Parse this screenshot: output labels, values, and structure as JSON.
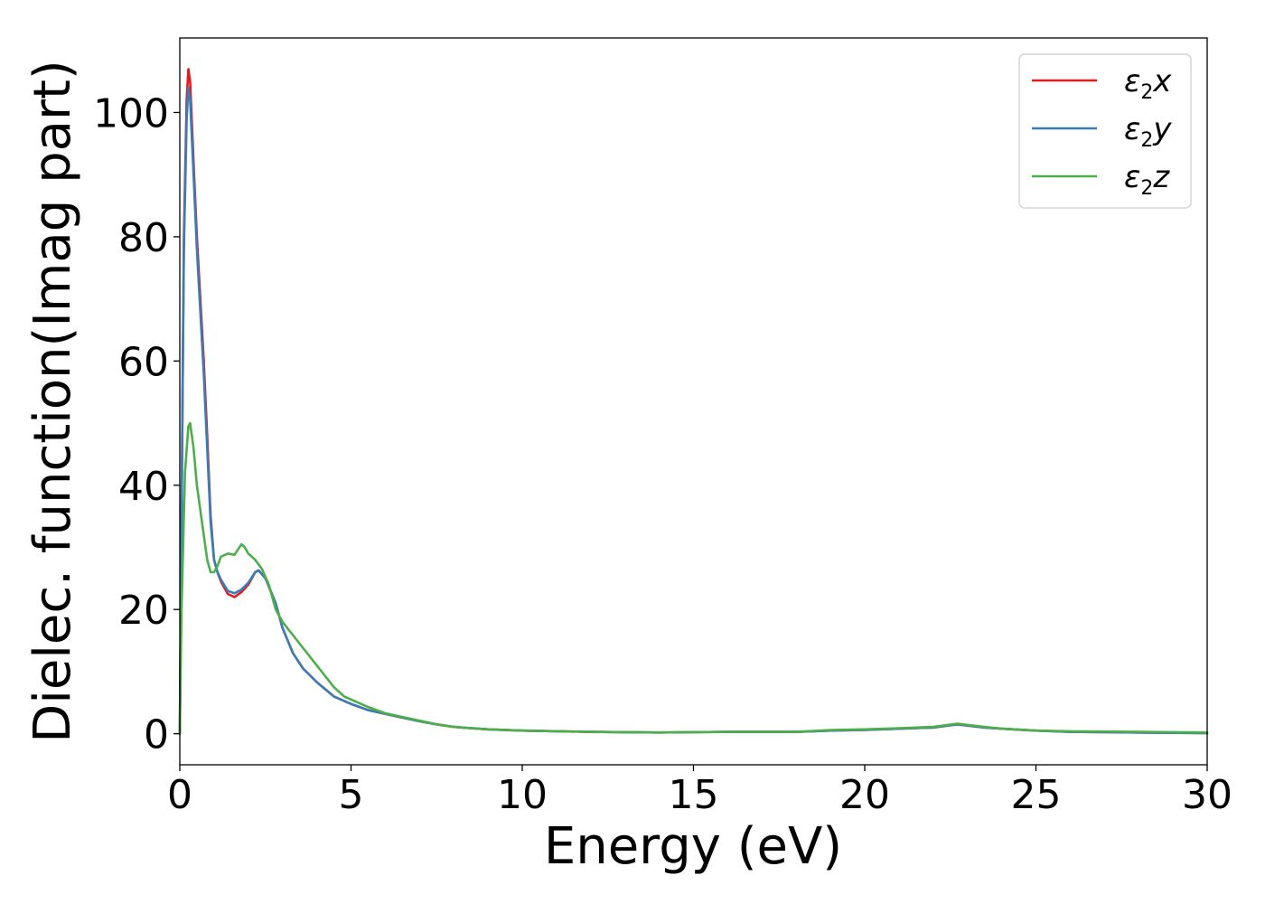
{
  "chart_data": {
    "type": "line",
    "title": "",
    "xlabel": "Energy (eV)",
    "ylabel": "Dielec. function(Imag part)",
    "xlim": [
      0,
      30
    ],
    "ylim": [
      -5,
      112
    ],
    "xticks": [
      0,
      5,
      10,
      15,
      20,
      25,
      30
    ],
    "yticks": [
      0,
      20,
      40,
      60,
      80,
      100
    ],
    "grid": false,
    "legend_position": "top-right",
    "series": [
      {
        "name": "ε2x",
        "legend_main": "ε",
        "legend_sub": "2",
        "legend_var": "x",
        "color": "#e41a1c",
        "points": [
          [
            0,
            0
          ],
          [
            0.05,
            35
          ],
          [
            0.12,
            80
          ],
          [
            0.2,
            102
          ],
          [
            0.25,
            107
          ],
          [
            0.3,
            105
          ],
          [
            0.4,
            92
          ],
          [
            0.5,
            80
          ],
          [
            0.6,
            70
          ],
          [
            0.7,
            60
          ],
          [
            0.8,
            48
          ],
          [
            0.9,
            35
          ],
          [
            1.0,
            28
          ],
          [
            1.1,
            26
          ],
          [
            1.2,
            24.5
          ],
          [
            1.4,
            22.5
          ],
          [
            1.6,
            22
          ],
          [
            1.8,
            22.8
          ],
          [
            2.0,
            24
          ],
          [
            2.2,
            26
          ],
          [
            2.3,
            26.3
          ],
          [
            2.5,
            25
          ],
          [
            2.8,
            21
          ],
          [
            3.0,
            17
          ],
          [
            3.3,
            13
          ],
          [
            3.6,
            10.5
          ],
          [
            4.0,
            8.3
          ],
          [
            4.5,
            6
          ],
          [
            5.0,
            4.8
          ],
          [
            5.5,
            3.8
          ],
          [
            6.0,
            3.2
          ],
          [
            6.5,
            2.6
          ],
          [
            7.0,
            2.0
          ],
          [
            7.5,
            1.5
          ],
          [
            8.0,
            1.1
          ],
          [
            9.0,
            0.7
          ],
          [
            10.0,
            0.5
          ],
          [
            12,
            0.3
          ],
          [
            14,
            0.2
          ],
          [
            16,
            0.3
          ],
          [
            18,
            0.3
          ],
          [
            19,
            0.5
          ],
          [
            20,
            0.6
          ],
          [
            21,
            0.8
          ],
          [
            22,
            1.0
          ],
          [
            22.7,
            1.5
          ],
          [
            23.5,
            1.0
          ],
          [
            24,
            0.8
          ],
          [
            25,
            0.5
          ],
          [
            26,
            0.3
          ],
          [
            28,
            0.2
          ],
          [
            30,
            0.1
          ]
        ]
      },
      {
        "name": "ε2y",
        "legend_main": "ε",
        "legend_sub": "2",
        "legend_var": "y",
        "color": "#377eb8",
        "points": [
          [
            0,
            0
          ],
          [
            0.05,
            34
          ],
          [
            0.12,
            78
          ],
          [
            0.2,
            99
          ],
          [
            0.25,
            104
          ],
          [
            0.3,
            102
          ],
          [
            0.4,
            90
          ],
          [
            0.5,
            78
          ],
          [
            0.6,
            68
          ],
          [
            0.7,
            58
          ],
          [
            0.8,
            46
          ],
          [
            0.9,
            34
          ],
          [
            1.0,
            28
          ],
          [
            1.1,
            26
          ],
          [
            1.2,
            24.8
          ],
          [
            1.4,
            23
          ],
          [
            1.6,
            22.6
          ],
          [
            1.8,
            23.2
          ],
          [
            2.0,
            24.3
          ],
          [
            2.2,
            26
          ],
          [
            2.3,
            26.3
          ],
          [
            2.5,
            25
          ],
          [
            2.8,
            21
          ],
          [
            3.0,
            17
          ],
          [
            3.3,
            13
          ],
          [
            3.6,
            10.5
          ],
          [
            4.0,
            8.3
          ],
          [
            4.5,
            6
          ],
          [
            5.0,
            4.8
          ],
          [
            5.5,
            3.8
          ],
          [
            6.0,
            3.2
          ],
          [
            6.5,
            2.6
          ],
          [
            7.0,
            2.0
          ],
          [
            7.5,
            1.5
          ],
          [
            8.0,
            1.1
          ],
          [
            9.0,
            0.7
          ],
          [
            10.0,
            0.5
          ],
          [
            12,
            0.3
          ],
          [
            14,
            0.2
          ],
          [
            16,
            0.3
          ],
          [
            18,
            0.3
          ],
          [
            19,
            0.5
          ],
          [
            20,
            0.6
          ],
          [
            21,
            0.8
          ],
          [
            22,
            1.0
          ],
          [
            22.7,
            1.5
          ],
          [
            23.5,
            1.0
          ],
          [
            24,
            0.8
          ],
          [
            25,
            0.5
          ],
          [
            26,
            0.3
          ],
          [
            28,
            0.2
          ],
          [
            30,
            0.1
          ]
        ]
      },
      {
        "name": "ε2z",
        "legend_main": "ε",
        "legend_sub": "2",
        "legend_var": "z",
        "color": "#4daf4a",
        "points": [
          [
            0,
            0
          ],
          [
            0.05,
            20
          ],
          [
            0.15,
            42
          ],
          [
            0.25,
            49.5
          ],
          [
            0.3,
            50
          ],
          [
            0.4,
            46
          ],
          [
            0.5,
            40
          ],
          [
            0.6,
            36
          ],
          [
            0.7,
            32
          ],
          [
            0.8,
            28
          ],
          [
            0.9,
            26
          ],
          [
            1.0,
            26
          ],
          [
            1.1,
            27
          ],
          [
            1.2,
            28.5
          ],
          [
            1.4,
            29
          ],
          [
            1.6,
            28.8
          ],
          [
            1.8,
            30.5
          ],
          [
            1.9,
            30
          ],
          [
            2.0,
            29
          ],
          [
            2.2,
            28
          ],
          [
            2.4,
            26.5
          ],
          [
            2.6,
            24
          ],
          [
            2.8,
            20
          ],
          [
            3.0,
            18
          ],
          [
            3.5,
            14.5
          ],
          [
            4.0,
            11
          ],
          [
            4.5,
            7.5
          ],
          [
            4.8,
            6
          ],
          [
            5.0,
            5.5
          ],
          [
            5.5,
            4.3
          ],
          [
            6.0,
            3.3
          ],
          [
            6.5,
            2.7
          ],
          [
            7.0,
            2.1
          ],
          [
            7.5,
            1.5
          ],
          [
            8.0,
            1.1
          ],
          [
            9.0,
            0.7
          ],
          [
            10.0,
            0.5
          ],
          [
            12,
            0.3
          ],
          [
            14,
            0.2
          ],
          [
            16,
            0.3
          ],
          [
            18,
            0.3
          ],
          [
            19,
            0.6
          ],
          [
            20,
            0.7
          ],
          [
            21,
            0.9
          ],
          [
            22,
            1.1
          ],
          [
            22.7,
            1.6
          ],
          [
            23.5,
            1.1
          ],
          [
            24,
            0.8
          ],
          [
            25,
            0.5
          ],
          [
            26,
            0.4
          ],
          [
            28,
            0.3
          ],
          [
            30,
            0.2
          ]
        ]
      }
    ]
  }
}
